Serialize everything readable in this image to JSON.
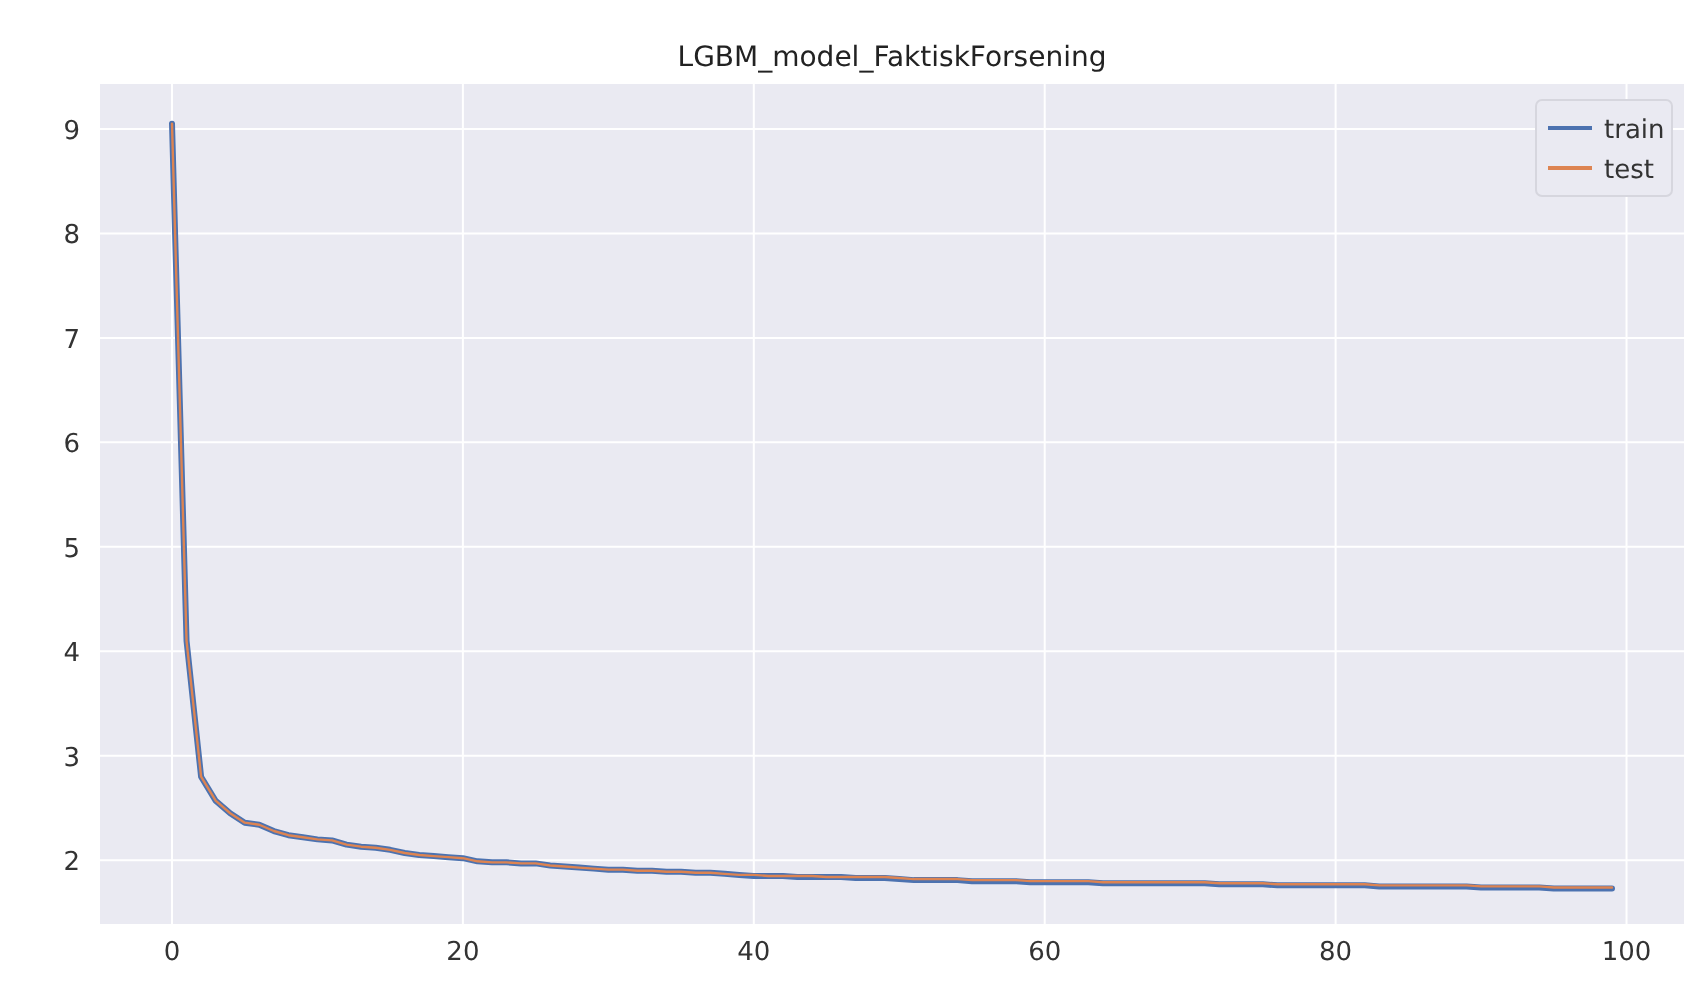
{
  "chart_data": {
    "type": "line",
    "title": "LGBM_model_FaktiskForsening",
    "x": [
      0,
      1,
      2,
      3,
      4,
      5,
      6,
      7,
      8,
      9,
      10,
      11,
      12,
      13,
      14,
      15,
      16,
      17,
      18,
      19,
      20,
      21,
      22,
      23,
      24,
      25,
      26,
      27,
      28,
      29,
      30,
      31,
      32,
      33,
      34,
      35,
      36,
      37,
      38,
      39,
      40,
      41,
      42,
      43,
      44,
      45,
      46,
      47,
      48,
      49,
      50,
      51,
      52,
      53,
      54,
      55,
      56,
      57,
      58,
      59,
      60,
      61,
      62,
      63,
      64,
      65,
      66,
      67,
      68,
      69,
      70,
      71,
      72,
      73,
      74,
      75,
      76,
      77,
      78,
      79,
      80,
      81,
      82,
      83,
      84,
      85,
      86,
      87,
      88,
      89,
      90,
      91,
      92,
      93,
      94,
      95,
      96,
      97,
      98,
      99
    ],
    "series": [
      {
        "name": "train",
        "color": "#4c72b0",
        "values": [
          9.05,
          4.1,
          2.8,
          2.57,
          2.45,
          2.36,
          2.34,
          2.28,
          2.24,
          2.22,
          2.2,
          2.19,
          2.15,
          2.13,
          2.12,
          2.1,
          2.07,
          2.05,
          2.04,
          2.03,
          2.02,
          1.99,
          1.98,
          1.98,
          1.97,
          1.97,
          1.95,
          1.94,
          1.93,
          1.92,
          1.91,
          1.91,
          1.9,
          1.9,
          1.89,
          1.89,
          1.88,
          1.88,
          1.87,
          1.86,
          1.85,
          1.85,
          1.85,
          1.84,
          1.84,
          1.84,
          1.84,
          1.83,
          1.83,
          1.83,
          1.82,
          1.81,
          1.81,
          1.81,
          1.81,
          1.8,
          1.8,
          1.8,
          1.8,
          1.79,
          1.79,
          1.79,
          1.79,
          1.79,
          1.78,
          1.78,
          1.78,
          1.78,
          1.78,
          1.78,
          1.78,
          1.78,
          1.77,
          1.77,
          1.77,
          1.77,
          1.76,
          1.76,
          1.76,
          1.76,
          1.76,
          1.76,
          1.76,
          1.75,
          1.75,
          1.75,
          1.75,
          1.75,
          1.75,
          1.75,
          1.74,
          1.74,
          1.74,
          1.74,
          1.74,
          1.73,
          1.73,
          1.73,
          1.73,
          1.73
        ]
      },
      {
        "name": "test",
        "color": "#dd8452",
        "values": [
          9.05,
          4.1,
          2.8,
          2.57,
          2.45,
          2.36,
          2.34,
          2.28,
          2.24,
          2.22,
          2.2,
          2.19,
          2.15,
          2.13,
          2.12,
          2.1,
          2.07,
          2.05,
          2.04,
          2.03,
          2.02,
          1.99,
          1.98,
          1.98,
          1.97,
          1.97,
          1.95,
          1.94,
          1.93,
          1.92,
          1.91,
          1.91,
          1.9,
          1.9,
          1.89,
          1.89,
          1.88,
          1.88,
          1.87,
          1.86,
          1.86,
          1.85,
          1.85,
          1.85,
          1.85,
          1.84,
          1.84,
          1.84,
          1.84,
          1.84,
          1.83,
          1.82,
          1.82,
          1.82,
          1.82,
          1.81,
          1.81,
          1.81,
          1.81,
          1.8,
          1.8,
          1.8,
          1.8,
          1.8,
          1.79,
          1.79,
          1.79,
          1.79,
          1.79,
          1.79,
          1.79,
          1.79,
          1.78,
          1.78,
          1.78,
          1.78,
          1.77,
          1.77,
          1.77,
          1.77,
          1.77,
          1.77,
          1.77,
          1.76,
          1.76,
          1.76,
          1.76,
          1.76,
          1.76,
          1.76,
          1.75,
          1.75,
          1.75,
          1.75,
          1.75,
          1.74,
          1.74,
          1.74,
          1.74,
          1.74
        ]
      }
    ],
    "xlim": [
      -4.95,
      103.95
    ],
    "ylim": [
      1.39,
      9.43
    ],
    "xticks": [
      0,
      20,
      40,
      60,
      80,
      100
    ],
    "yticks": [
      2,
      3,
      4,
      5,
      6,
      7,
      8,
      9
    ],
    "grid": true,
    "legend": "top right"
  }
}
